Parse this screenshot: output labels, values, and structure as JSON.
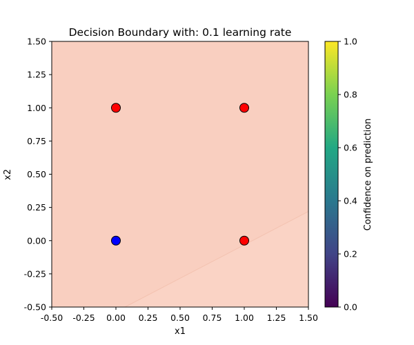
{
  "chart_data": {
    "type": "scatter",
    "title": "Decision Boundary with: 0.1 learning rate",
    "xlabel": "x1",
    "ylabel": "x2",
    "xlim": [
      -0.5,
      1.5
    ],
    "ylim": [
      -0.5,
      1.5
    ],
    "x_ticks": [
      "-0.50",
      "-0.25",
      "0.00",
      "0.25",
      "0.50",
      "0.75",
      "1.00",
      "1.25",
      "1.50"
    ],
    "y_ticks": [
      "-0.50",
      "-0.25",
      "0.00",
      "0.25",
      "0.50",
      "0.75",
      "1.00",
      "1.25",
      "1.50"
    ],
    "x_tick_values": [
      -0.5,
      -0.25,
      0,
      0.25,
      0.5,
      0.75,
      1.0,
      1.25,
      1.5
    ],
    "y_tick_values": [
      -0.5,
      -0.25,
      0,
      0.25,
      0.5,
      0.75,
      1.0,
      1.25,
      1.5
    ],
    "points": [
      {
        "x": 0,
        "y": 1,
        "color": "#ff0000"
      },
      {
        "x": 1,
        "y": 1,
        "color": "#ff0000"
      },
      {
        "x": 0,
        "y": 0,
        "color": "#0000ff"
      },
      {
        "x": 1,
        "y": 0,
        "color": "#ff0000"
      }
    ],
    "decision_boundary": [
      [
        0.07,
        -0.5
      ],
      [
        1.5,
        0.22
      ]
    ],
    "region_colors": {
      "upper": "#f9cfc0",
      "lower": "#fad3c5"
    },
    "colorbar": {
      "label": "Confidence on prediction",
      "ticks": [
        "0.0",
        "0.2",
        "0.4",
        "0.6",
        "0.8",
        "1.0"
      ],
      "tick_values": [
        0,
        0.2,
        0.4,
        0.6,
        0.8,
        1.0
      ],
      "range": [
        0,
        1
      ],
      "colormap": [
        "#440154",
        "#414487",
        "#2a788e",
        "#22a884",
        "#7ad151",
        "#fde725"
      ]
    }
  }
}
